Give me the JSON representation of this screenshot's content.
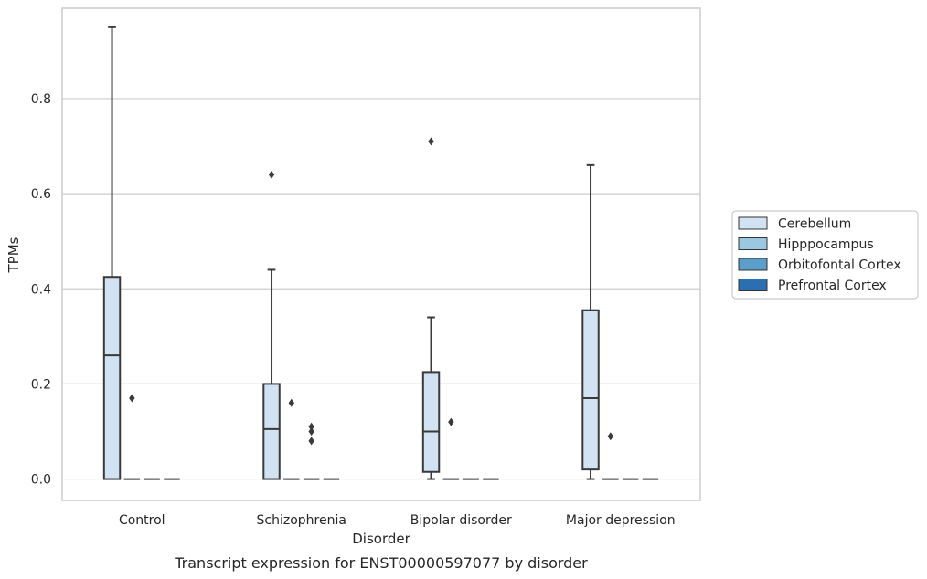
{
  "chart_data": {
    "type": "box",
    "xlabel": "Disorder",
    "ylabel": "TPMs",
    "caption": "Transcript expression for ENST00000597077 by disorder",
    "categories": [
      "Control",
      "Schizophrenia",
      "Bipolar disorder",
      "Major depression"
    ],
    "ylim": [
      -0.045,
      0.99
    ],
    "yticks": [
      0.0,
      0.2,
      0.4,
      0.6,
      0.8
    ],
    "ytick_labels": [
      "0.0",
      "0.2",
      "0.4",
      "0.6",
      "0.8"
    ],
    "grid": "horizontal",
    "legend_position": "right",
    "series": [
      {
        "name": "Cerebellum",
        "color": "#d1e2f2",
        "boxes": [
          {
            "category": "Control",
            "whislo": 0.0,
            "q1": 0.0,
            "median": 0.26,
            "q3": 0.425,
            "whishi": 0.95,
            "fliers": []
          },
          {
            "category": "Schizophrenia",
            "whislo": 0.0,
            "q1": 0.0,
            "median": 0.105,
            "q3": 0.2,
            "whishi": 0.44,
            "fliers": [
              0.64
            ]
          },
          {
            "category": "Bipolar disorder",
            "whislo": 0.0,
            "q1": 0.015,
            "median": 0.1,
            "q3": 0.225,
            "whishi": 0.34,
            "fliers": [
              0.71
            ]
          },
          {
            "category": "Major depression",
            "whislo": 0.0,
            "q1": 0.02,
            "median": 0.17,
            "q3": 0.355,
            "whishi": 0.66,
            "fliers": []
          }
        ]
      },
      {
        "name": "Hipppocampus",
        "color": "#9ac8e0",
        "boxes": [
          {
            "category": "Control",
            "whislo": 0.0,
            "q1": 0.0,
            "median": 0.0,
            "q3": 0.0,
            "whishi": 0.0,
            "fliers": [
              0.17
            ]
          },
          {
            "category": "Schizophrenia",
            "whislo": 0.0,
            "q1": 0.0,
            "median": 0.0,
            "q3": 0.0,
            "whishi": 0.0,
            "fliers": [
              0.16
            ]
          },
          {
            "category": "Bipolar disorder",
            "whislo": 0.0,
            "q1": 0.0,
            "median": 0.0,
            "q3": 0.0,
            "whishi": 0.0,
            "fliers": [
              0.12
            ]
          },
          {
            "category": "Major depression",
            "whislo": 0.0,
            "q1": 0.0,
            "median": 0.0,
            "q3": 0.0,
            "whishi": 0.0,
            "fliers": [
              0.09
            ]
          }
        ]
      },
      {
        "name": "Orbitofontal Cortex",
        "color": "#5a9ec9",
        "boxes": [
          {
            "category": "Control",
            "whislo": 0.0,
            "q1": 0.0,
            "median": 0.0,
            "q3": 0.0,
            "whishi": 0.0,
            "fliers": []
          },
          {
            "category": "Schizophrenia",
            "whislo": 0.0,
            "q1": 0.0,
            "median": 0.0,
            "q3": 0.0,
            "whishi": 0.0,
            "fliers": [
              0.11,
              0.1,
              0.08
            ]
          },
          {
            "category": "Bipolar disorder",
            "whislo": 0.0,
            "q1": 0.0,
            "median": 0.0,
            "q3": 0.0,
            "whishi": 0.0,
            "fliers": []
          },
          {
            "category": "Major depression",
            "whislo": 0.0,
            "q1": 0.0,
            "median": 0.0,
            "q3": 0.0,
            "whishi": 0.0,
            "fliers": []
          }
        ]
      },
      {
        "name": "Prefrontal Cortex",
        "color": "#2c6fb0",
        "boxes": [
          {
            "category": "Control",
            "whislo": 0.0,
            "q1": 0.0,
            "median": 0.0,
            "q3": 0.0,
            "whishi": 0.0,
            "fliers": []
          },
          {
            "category": "Schizophrenia",
            "whislo": 0.0,
            "q1": 0.0,
            "median": 0.0,
            "q3": 0.0,
            "whishi": 0.0,
            "fliers": []
          },
          {
            "category": "Bipolar disorder",
            "whislo": 0.0,
            "q1": 0.0,
            "median": 0.0,
            "q3": 0.0,
            "whishi": 0.0,
            "fliers": []
          },
          {
            "category": "Major depression",
            "whislo": 0.0,
            "q1": 0.0,
            "median": 0.0,
            "q3": 0.0,
            "whishi": 0.0,
            "fliers": []
          }
        ]
      }
    ],
    "colors": {
      "box_edge": "#3a3a3a",
      "grid": "#cccccc",
      "frame": "#cccccc",
      "legend_frame": "#cccccc"
    }
  }
}
